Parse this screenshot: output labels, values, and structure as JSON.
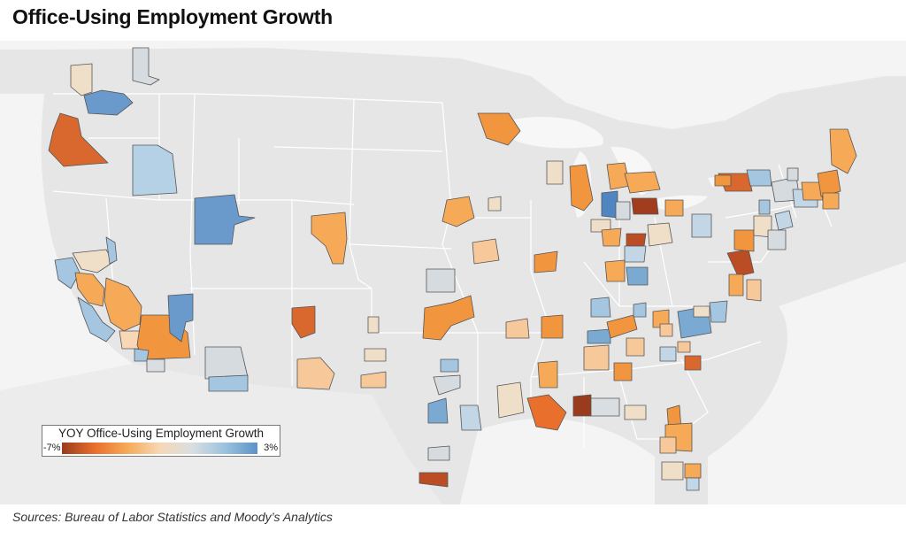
{
  "title": "Office-Using Employment Growth",
  "source": "Sources: Bureau of Labor Statistics and Moody’s Analytics",
  "legend": {
    "title": "YOY Office-Using Employment Growth",
    "min_label": "-7%",
    "max_label": "3%",
    "min_value": -7,
    "max_value": 3,
    "color_stops": [
      "#9a3b1d",
      "#e86f2c",
      "#f6aa58",
      "#f7d7b5",
      "#d9dee2",
      "#9cc2dd",
      "#5b92c8"
    ]
  },
  "colors": {
    "land": "#e6e6e6",
    "water": "#f7f7f7",
    "region_outline": "#555555"
  },
  "chart_data": {
    "type": "choropleth",
    "metric": "YOY Office-Using Employment Growth (%)",
    "range": [
      -7,
      3
    ]
  }
}
